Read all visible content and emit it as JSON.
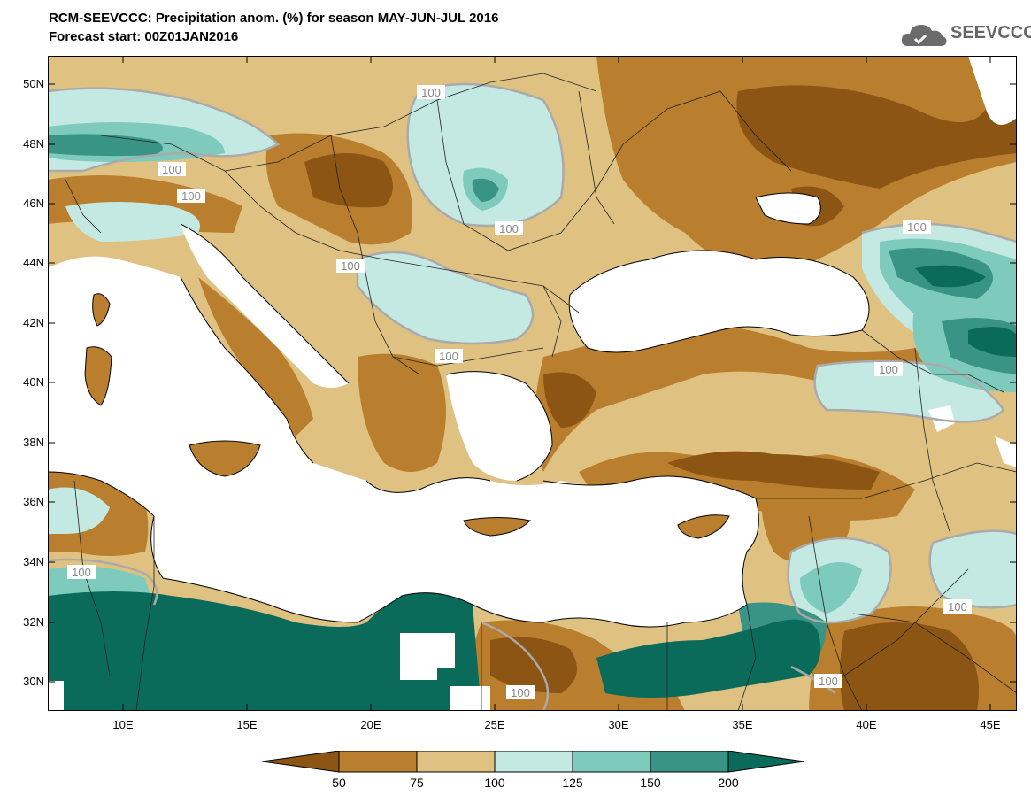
{
  "header": {
    "title_line1": "RCM-SEEVCCC: Precipitation anom. (%) for season MAY-JUN-JUL 2016",
    "title_line2": "Forecast start: 00Z01JAN2016"
  },
  "logo": {
    "text": "SEEVCCC",
    "icon": "cloud-icon"
  },
  "map": {
    "lat_labels": [
      "50N",
      "48N",
      "46N",
      "44N",
      "42N",
      "40N",
      "38N",
      "36N",
      "34N",
      "32N",
      "30N"
    ],
    "lon_labels": [
      "10E",
      "15E",
      "20E",
      "25E",
      "30E",
      "35E",
      "40E",
      "45E"
    ],
    "contour_label": "100"
  },
  "colorbar": {
    "tick_labels": [
      "50",
      "75",
      "100",
      "125",
      "150",
      "200"
    ],
    "colors": [
      "#8c5514",
      "#b97f2e",
      "#dfc282",
      "#c4e9e3",
      "#7ecbbd",
      "#3a9486",
      "#0a6b5b"
    ]
  },
  "colors": {
    "sea": "#ffffff",
    "very_dry": "#8c5514",
    "dry": "#b97f2e",
    "slightly_dry": "#dfc282",
    "slightly_wet": "#c4e9e3",
    "wet": "#7ecbbd",
    "very_wet": "#3a9486",
    "extreme_wet": "#0a6b5b"
  }
}
